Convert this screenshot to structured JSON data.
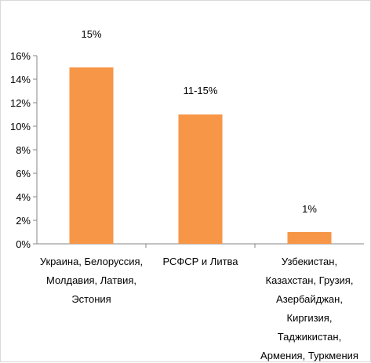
{
  "chart_data": {
    "type": "bar",
    "categories": [
      [
        "Украина, Белоруссия,",
        "Молдавия, Латвия,",
        "Эстония"
      ],
      [
        "РСФСР и Литва"
      ],
      [
        "Узбекистан,",
        "Казахстан, Грузия,",
        "Азербайджан,",
        "Киргизия,",
        "Таджикистан,",
        "Армения, Туркмения"
      ]
    ],
    "values": [
      15,
      11,
      1
    ],
    "data_labels": [
      "15%",
      "11-15%",
      "1%"
    ],
    "ylim": [
      0,
      16
    ],
    "yticks": [
      "0%",
      "2%",
      "4%",
      "6%",
      "8%",
      "10%",
      "12%",
      "14%",
      "16%"
    ],
    "ytick_values": [
      0,
      2,
      4,
      6,
      8,
      10,
      12,
      14,
      16
    ],
    "bar_color": "#F79646",
    "grid": false,
    "legend": "none",
    "title": "",
    "xlabel": "",
    "ylabel": ""
  }
}
